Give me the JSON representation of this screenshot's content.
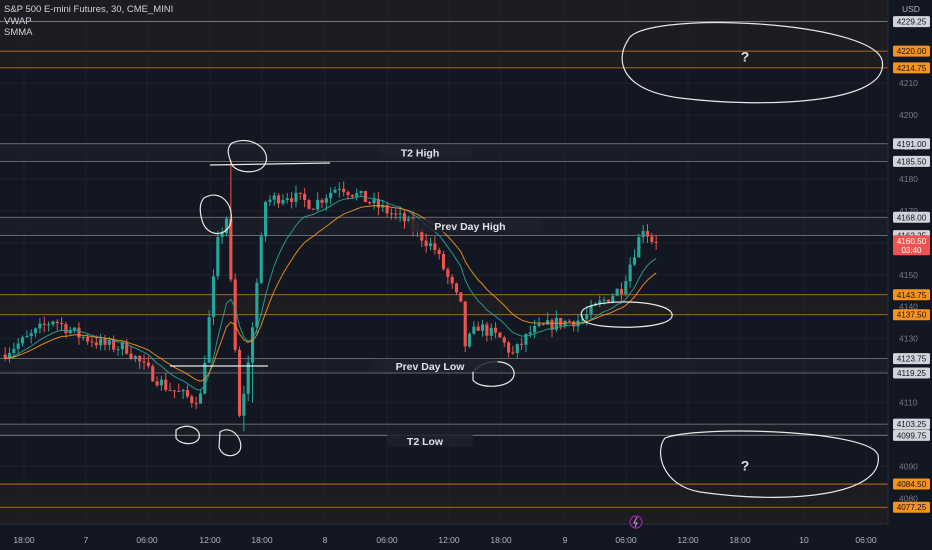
{
  "legend": {
    "symbol": "S&P 500 E-mini Futures, 30, CME_MINI",
    "indicator1": "VWAP",
    "indicator2": "SMMA"
  },
  "currency": "USD",
  "colors": {
    "background": "#131722",
    "up": "#26a69a",
    "down": "#ef5350",
    "grid": "#1e222d",
    "white_line": "#c8c8c8",
    "orange_line": "#f7931a",
    "vwap": "#26a69a",
    "smma": "#f7931a"
  },
  "chart_data": {
    "type": "candlestick",
    "ylim": [
      4072,
      4236
    ],
    "y_ticks": [
      4080,
      4090,
      4100,
      4110,
      4120,
      4130,
      4140,
      4150,
      4160,
      4170,
      4180,
      4190,
      4200,
      4210,
      4220,
      4230
    ],
    "x_ticks": [
      "18:00",
      "7",
      "06:00",
      "12:00",
      "18:00",
      "8",
      "06:00",
      "12:00",
      "18:00",
      "9",
      "06:00",
      "12:00",
      "18:00",
      "10",
      "06:00"
    ],
    "price_lines": [
      {
        "price": 4229.25,
        "label": "4229.25",
        "style": "white"
      },
      {
        "price": 4220.0,
        "label": "4220.00",
        "style": "orange"
      },
      {
        "price": 4214.75,
        "label": "4214.75",
        "style": "orange"
      },
      {
        "price": 4191.0,
        "label": "4191.00",
        "style": "white"
      },
      {
        "price": 4185.5,
        "label": "4185.50",
        "style": "white"
      },
      {
        "price": 4168.0,
        "label": "4168.00",
        "style": "white"
      },
      {
        "price": 4162.25,
        "label": "4162.25",
        "style": "white"
      },
      {
        "price": 4143.75,
        "label": "4143.75",
        "style": "orange"
      },
      {
        "price": 4137.5,
        "label": "4137.50",
        "style": "orange"
      },
      {
        "price": 4123.75,
        "label": "4123.75",
        "style": "white"
      },
      {
        "price": 4119.25,
        "label": "4119.25",
        "style": "white"
      },
      {
        "price": 4103.25,
        "label": "4103.25",
        "style": "white"
      },
      {
        "price": 4099.75,
        "label": "4099.75",
        "style": "white"
      },
      {
        "price": 4084.5,
        "label": "4084.50",
        "style": "orange"
      },
      {
        "price": 4077.25,
        "label": "4077.25",
        "style": "orange"
      }
    ],
    "current_price": {
      "label": "4160.50",
      "countdown": "03:40",
      "price": 4160.5
    },
    "annotations": [
      {
        "text": "T2 High",
        "price": 4188.3
      },
      {
        "text": "Prev Day High",
        "price": 4165.2
      },
      {
        "text": "Prev Day Low",
        "price": 4121.5
      },
      {
        "text": "T2 Low",
        "price": 4098
      },
      {
        "text": "?",
        "price": 4218
      },
      {
        "text": "?",
        "price": 4090
      }
    ],
    "waypoints": [
      [
        0,
        4125
      ],
      [
        6,
        4130
      ],
      [
        12,
        4136
      ],
      [
        18,
        4131
      ],
      [
        24,
        4128
      ],
      [
        29,
        4127
      ],
      [
        33,
        4121
      ],
      [
        38,
        4115
      ],
      [
        44,
        4111
      ],
      [
        46,
        4112
      ],
      [
        50,
        4160
      ],
      [
        52,
        4168
      ],
      [
        55,
        4105
      ],
      [
        57,
        4122
      ],
      [
        61,
        4173
      ],
      [
        66,
        4175
      ],
      [
        72,
        4172
      ],
      [
        78,
        4178
      ],
      [
        86,
        4172
      ],
      [
        93,
        4167
      ],
      [
        100,
        4158
      ],
      [
        106,
        4140
      ],
      [
        107,
        4128
      ],
      [
        110,
        4134
      ],
      [
        115,
        4130
      ],
      [
        118,
        4125
      ],
      [
        122,
        4132
      ],
      [
        128,
        4135
      ],
      [
        134,
        4136
      ],
      [
        138,
        4141
      ],
      [
        143,
        4146
      ],
      [
        148,
        4165
      ],
      [
        150,
        4161
      ]
    ]
  }
}
